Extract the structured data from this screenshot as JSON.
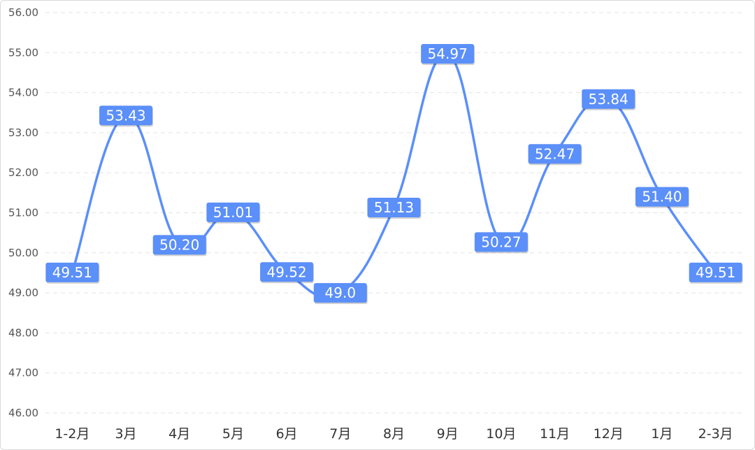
{
  "chart_data": {
    "type": "line",
    "smooth": true,
    "categories": [
      "1-2月",
      "3月",
      "4月",
      "5月",
      "6月",
      "7月",
      "8月",
      "9月",
      "10月",
      "11月",
      "12月",
      "1月",
      "2-3月"
    ],
    "values": [
      49.51,
      53.43,
      50.2,
      51.01,
      49.52,
      49.0,
      51.13,
      54.97,
      50.27,
      52.47,
      53.84,
      51.4,
      49.51
    ],
    "data_labels": [
      "49.51",
      "53.43",
      "50.20",
      "51.01",
      "49.52",
      "49.0",
      "51.13",
      "54.97",
      "50.27",
      "52.47",
      "53.84",
      "51.40",
      "49.51"
    ],
    "ylim": [
      46,
      56
    ],
    "yticks": [
      "46.00",
      "47.00",
      "48.00",
      "49.00",
      "50.00",
      "51.00",
      "52.00",
      "53.00",
      "54.00",
      "55.00",
      "56.00"
    ],
    "grid": true,
    "line_color": "#5b8ff9",
    "label_bg_color": "#5b8ff9"
  }
}
